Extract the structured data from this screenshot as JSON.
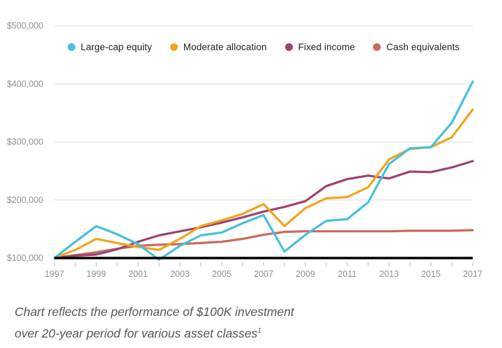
{
  "caption": {
    "line1": "Chart reflects the performance of $100K investment",
    "line2": "over 20-year period for various asset classes",
    "footnote_marker": "1"
  },
  "colors": {
    "grid": "#d9dadc",
    "axis": "#000000",
    "tick": "#b4b7bd",
    "tick_label": "#8b8f97",
    "large_cap": "#49bedc",
    "moderate": "#f0a41e",
    "fixed_income": "#9c4270",
    "cash": "#c96a5b"
  },
  "chart_data": {
    "type": "line",
    "title": "",
    "xlabel": "",
    "ylabel": "",
    "grid": "horizontal",
    "legend_position": "top",
    "x": [
      1997,
      1998,
      1999,
      2000,
      2001,
      2002,
      2003,
      2004,
      2005,
      2006,
      2007,
      2008,
      2009,
      2010,
      2011,
      2012,
      2013,
      2014,
      2015,
      2016,
      2017
    ],
    "x_tick_labels": [
      "1997",
      "1999",
      "2001",
      "2003",
      "2005",
      "2007",
      "2009",
      "2011",
      "2013",
      "2015",
      "2017"
    ],
    "ylim": [
      100000,
      500000
    ],
    "y_ticks": [
      100000,
      200000,
      300000,
      400000,
      500000
    ],
    "y_tick_labels": [
      "$100,000",
      "$200,000",
      "$300,000",
      "$400,000",
      "$500,000"
    ],
    "series": [
      {
        "name": "Large-cap equity",
        "color": "#49bedc",
        "values": [
          100000,
          128000,
          155000,
          141000,
          124000,
          97000,
          121000,
          139000,
          144000,
          160000,
          174000,
          111000,
          140000,
          164000,
          167000,
          196000,
          262000,
          289000,
          291000,
          333000,
          404000
        ]
      },
      {
        "name": "Moderate allocation",
        "color": "#f0a41e",
        "values": [
          100000,
          114000,
          133000,
          126000,
          119000,
          114000,
          133000,
          155000,
          165000,
          176000,
          193000,
          155000,
          186000,
          203000,
          205000,
          222000,
          270000,
          288000,
          291000,
          308000,
          356000
        ]
      },
      {
        "name": "Fixed income",
        "color": "#9c4270",
        "values": [
          100000,
          104000,
          106000,
          115000,
          128000,
          139000,
          146000,
          153000,
          161000,
          170000,
          180000,
          188000,
          198000,
          224000,
          236000,
          242000,
          237000,
          249000,
          248000,
          256000,
          267000
        ]
      },
      {
        "name": "Cash equivalents",
        "color": "#c96a5b",
        "values": [
          100000,
          105000,
          110000,
          116000,
          121000,
          123000,
          124000,
          126000,
          128000,
          133000,
          140000,
          145000,
          146000,
          146000,
          146000,
          146000,
          146000,
          147000,
          147000,
          147000,
          148000
        ]
      }
    ]
  }
}
